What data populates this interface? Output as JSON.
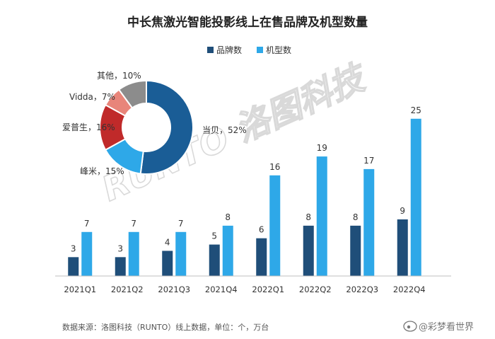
{
  "chart_data": [
    {
      "type": "bar",
      "title": "中长焦激光智能投影线上在售品牌及机型数量",
      "categories": [
        "2021Q1",
        "2021Q2",
        "2021Q3",
        "2021Q4",
        "2022Q1",
        "2022Q2",
        "2022Q3",
        "2022Q4"
      ],
      "series": [
        {
          "name": "品牌数",
          "color": "#1f4e79",
          "values": [
            3,
            3,
            4,
            5,
            6,
            8,
            8,
            9
          ]
        },
        {
          "name": "机型数",
          "color": "#2ea8e8",
          "values": [
            7,
            7,
            7,
            8,
            16,
            19,
            17,
            25
          ]
        }
      ],
      "ylim": [
        0,
        27
      ],
      "legend_position": "top-center",
      "grid": false
    },
    {
      "type": "pie",
      "style": "donut",
      "slices": [
        {
          "label": "当贝",
          "value": 52,
          "text": "当贝，52%",
          "color": "#1a5d96"
        },
        {
          "label": "峰米",
          "value": 15,
          "text": "峰米，15%",
          "color": "#2ea8e8"
        },
        {
          "label": "爱普生",
          "value": 16,
          "text": "爱普生，16%",
          "color": "#c02a2a"
        },
        {
          "label": "Vidda",
          "value": 7,
          "text": "Vidda，7%",
          "color": "#e8857a"
        },
        {
          "label": "其他",
          "value": 10,
          "text": "其他，10%",
          "color": "#8c8c8c"
        }
      ]
    }
  ],
  "footer": {
    "source": "数据来源：洛图科技（RUNTO）线上数据，单位：个，万台"
  },
  "watermark": {
    "text": "RUNTO 洛图科技"
  },
  "weibo_mark": {
    "text": "@彩梦看世界"
  }
}
